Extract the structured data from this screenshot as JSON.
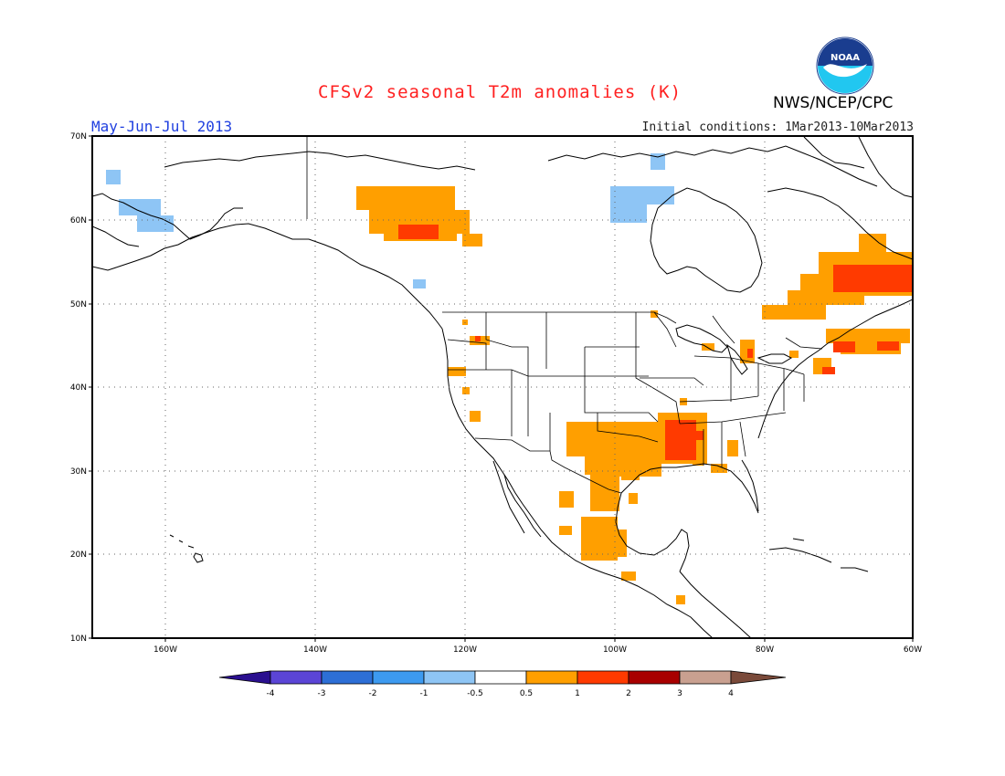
{
  "header": {
    "title": "CFSv2 seasonal T2m anomalies (K)",
    "season": "May-Jun-Jul 2013",
    "initial_conditions": "Initial conditions: 1Mar2013-10Mar2013",
    "agency": "NWS/NCEP/CPC",
    "logo_text": "NOAA"
  },
  "axes": {
    "lat_labels": [
      "70N",
      "60N",
      "50N",
      "40N",
      "30N",
      "20N",
      "10N"
    ],
    "lon_labels": [
      "160W",
      "140W",
      "120W",
      "100W",
      "80W",
      "60W"
    ]
  },
  "colorbar": {
    "labels": [
      "-4",
      "-3",
      "-2",
      "-1",
      "-0.5",
      "0.5",
      "1",
      "2",
      "3",
      "4"
    ],
    "colors": [
      "#2a0f8f",
      "#5b45d6",
      "#2d6fd6",
      "#3d9af0",
      "#8ec5f5",
      "#ffffff",
      "#ff9f00",
      "#ff3a00",
      "#a80000",
      "#c9a090",
      "#7a4a3a"
    ]
  },
  "colors": {
    "orange": "#ff9f00",
    "red": "#ff3a00",
    "lightblue": "#8ec5f5"
  }
}
